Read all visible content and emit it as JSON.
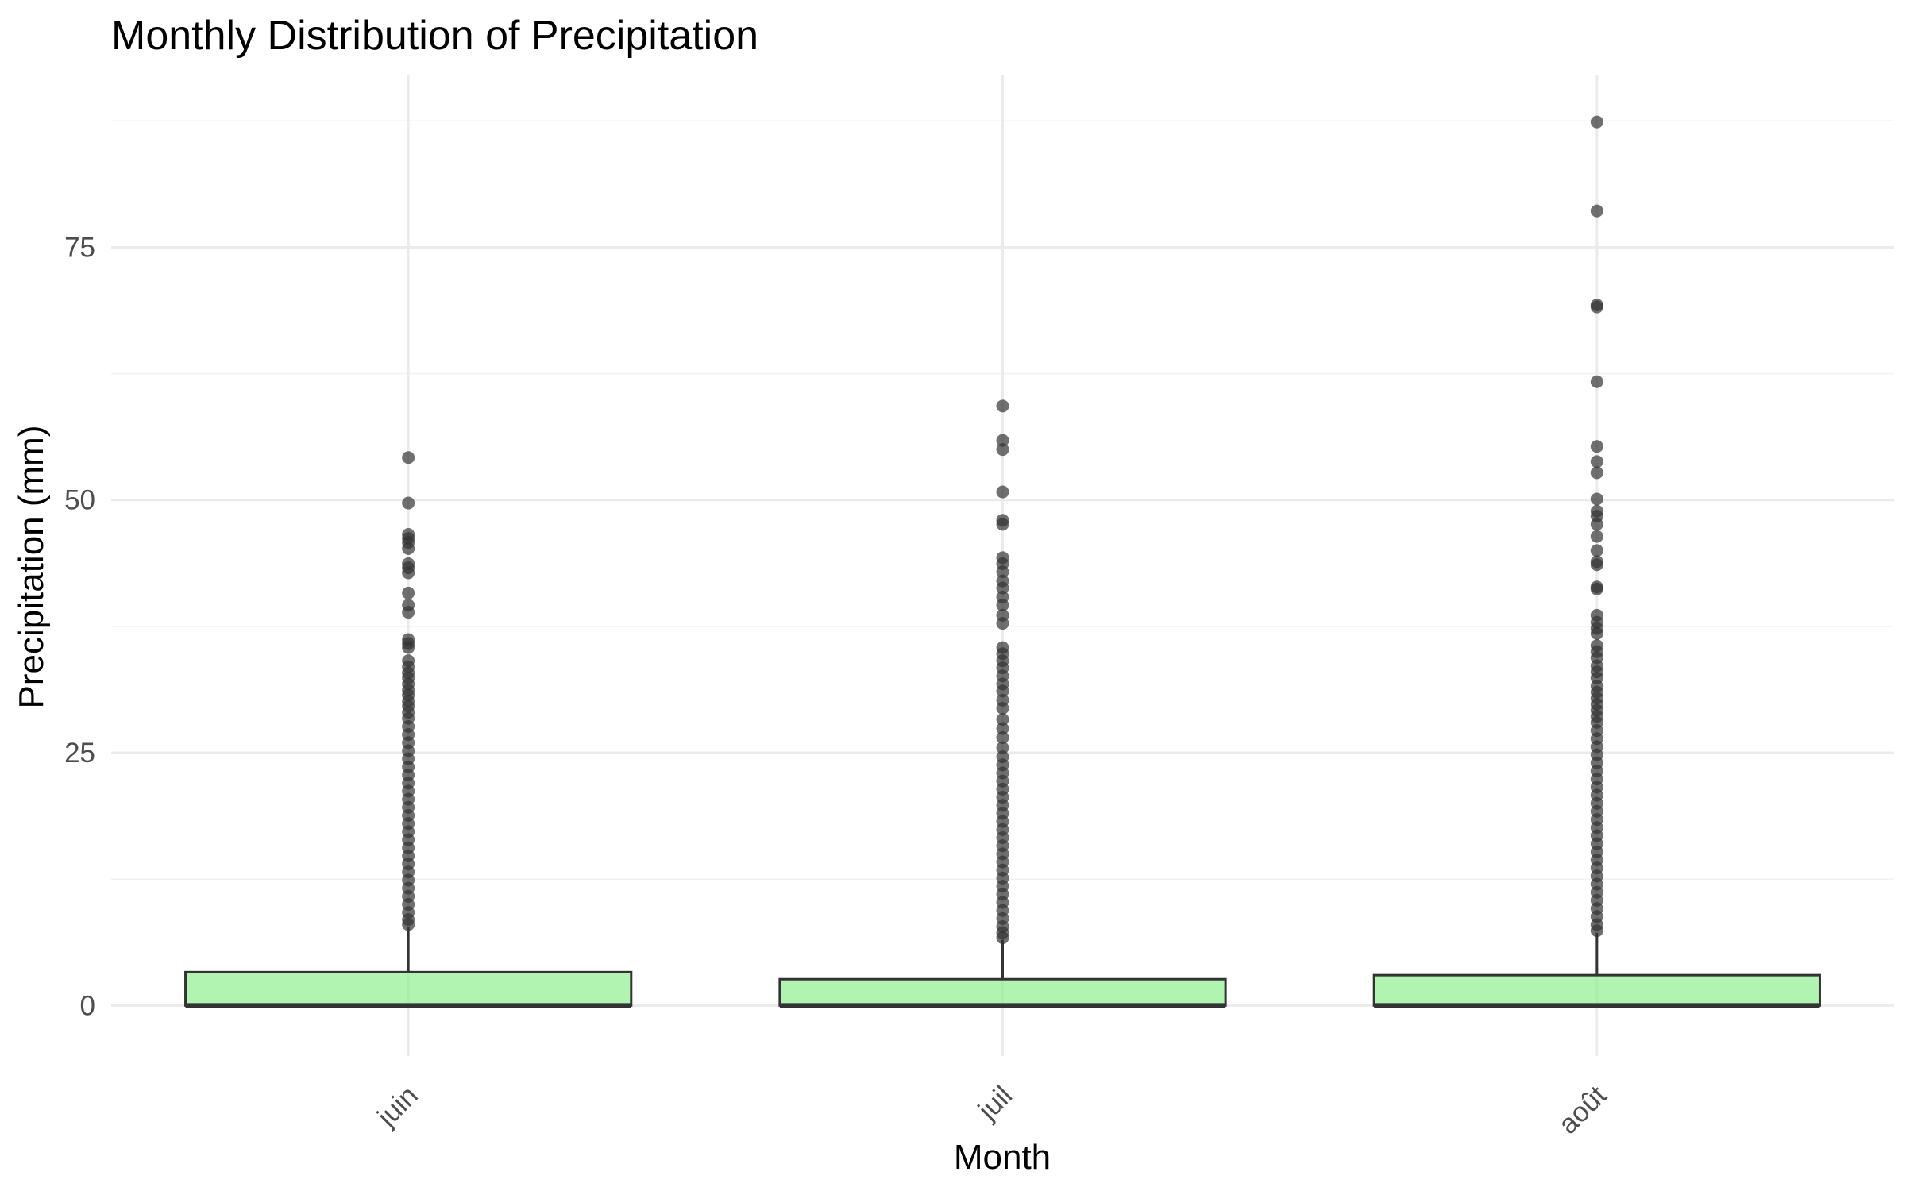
{
  "chart_data": {
    "type": "boxplot",
    "title": "Monthly Distribution of Precipitation",
    "xlabel": "Month",
    "ylabel": "Precipitation (mm)",
    "ylim": [
      -5,
      92
    ],
    "yticks": [
      0,
      25,
      50,
      75
    ],
    "grid": true,
    "legend": "none",
    "colors": {
      "box_fill": "#90ee90",
      "box_stroke": "#333333",
      "outlier": "#333333",
      "grid": "#ebebeb"
    },
    "categories": [
      "juin",
      "juil",
      "août"
    ],
    "boxes": [
      {
        "category": "juin",
        "min": 0,
        "q1": 0,
        "median": 0,
        "q3": 3.3,
        "whisker_high": 7.8,
        "outliers": [
          54.2,
          49.7,
          46.6,
          46.2,
          45.8,
          45.2,
          43.7,
          43.3,
          42.8,
          40.8,
          39.6,
          38.9,
          36.2,
          35.8,
          35.4,
          34.1,
          33.5,
          32.9,
          32.4,
          31.8,
          31.2,
          30.7,
          30.1,
          29.6,
          29.0,
          28.4,
          27.6,
          26.8,
          26.0,
          25.2,
          24.4,
          23.6,
          22.8,
          22.0,
          21.2,
          20.4,
          19.6,
          18.8,
          18.0,
          17.2,
          16.4,
          15.6,
          14.8,
          14.0,
          13.2,
          12.4,
          11.6,
          10.8,
          10.0,
          9.2,
          8.5,
          8.0
        ]
      },
      {
        "category": "juil",
        "min": 0,
        "q1": 0,
        "median": 0,
        "q3": 2.6,
        "whisker_high": 6.5,
        "outliers": [
          59.3,
          55.9,
          55.0,
          50.8,
          48.0,
          47.6,
          44.3,
          43.7,
          42.9,
          42.0,
          41.3,
          40.4,
          39.6,
          38.6,
          37.8,
          35.4,
          34.8,
          34.1,
          33.4,
          32.6,
          31.8,
          31.1,
          30.2,
          29.4,
          28.3,
          27.4,
          26.5,
          25.5,
          24.6,
          23.8,
          23.0,
          22.2,
          21.4,
          20.6,
          19.8,
          19.0,
          18.2,
          17.4,
          16.6,
          15.8,
          15.0,
          14.2,
          13.4,
          12.6,
          11.8,
          11.0,
          10.2,
          9.4,
          8.6,
          7.8,
          7.2,
          6.7
        ]
      },
      {
        "category": "août",
        "min": 0,
        "q1": 0,
        "median": 0,
        "q3": 3.0,
        "whisker_high": 7.2,
        "outliers": [
          87.4,
          78.6,
          69.3,
          69.1,
          61.7,
          55.3,
          53.8,
          52.7,
          50.1,
          48.9,
          48.4,
          47.6,
          46.4,
          45.0,
          43.9,
          43.6,
          41.4,
          41.2,
          38.6,
          37.9,
          37.3,
          36.8,
          35.6,
          35.0,
          34.4,
          33.6,
          33.0,
          32.4,
          31.6,
          31.0,
          30.4,
          29.8,
          29.2,
          28.6,
          28.0,
          27.2,
          26.4,
          25.6,
          24.8,
          24.0,
          23.2,
          22.4,
          21.6,
          20.8,
          20.0,
          19.2,
          18.4,
          17.6,
          16.8,
          16.0,
          15.2,
          14.4,
          13.6,
          12.8,
          12.0,
          11.2,
          10.4,
          9.6,
          8.8,
          8.0,
          7.4
        ]
      }
    ]
  }
}
